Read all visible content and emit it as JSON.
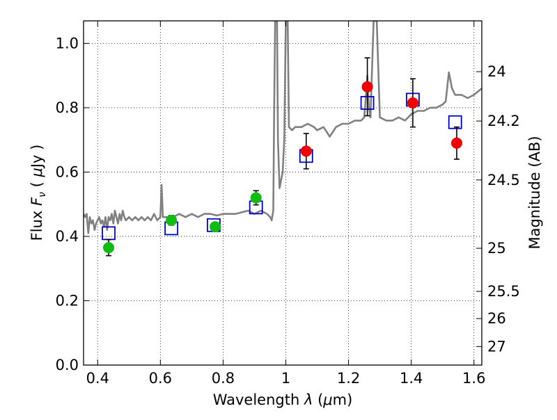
{
  "chart_data": {
    "type": "scatter",
    "xlabel": "Wavelength  λ (μm)",
    "ylabel": "Flux  F_ν  ( μJy )",
    "ylabel_parts": {
      "pre": "Flux  ",
      "var": "F",
      "sub": "ν",
      "post": "  ( ",
      "mu": "μ",
      "unit": "Jy )"
    },
    "xlabel_parts": {
      "pre": "Wavelength  ",
      "var": "λ",
      "post": " (",
      "mu": "μ",
      "unit": "m)"
    },
    "y2label": "Magnitude (AB)",
    "xlim": [
      0.355,
      1.625
    ],
    "ylim": [
      0.0,
      1.07
    ],
    "grid": true,
    "x_ticks": [
      {
        "v": 0.4,
        "label": "0.4"
      },
      {
        "v": 0.6,
        "label": "0.6"
      },
      {
        "v": 0.8,
        "label": "0.8"
      },
      {
        "v": 1.0,
        "label": "1"
      },
      {
        "v": 1.2,
        "label": "1.2"
      },
      {
        "v": 1.4,
        "label": "1.4"
      },
      {
        "v": 1.6,
        "label": "1.6"
      }
    ],
    "y_ticks": [
      {
        "v": 0.0,
        "label": "0.0"
      },
      {
        "v": 0.2,
        "label": "0.2"
      },
      {
        "v": 0.4,
        "label": "0.4"
      },
      {
        "v": 0.6,
        "label": "0.6"
      },
      {
        "v": 0.8,
        "label": "0.8"
      },
      {
        "v": 1.0,
        "label": "1.0"
      }
    ],
    "y2_ticks": [
      {
        "mag": 24,
        "label": "24"
      },
      {
        "mag": 24.2,
        "label": "24.2"
      },
      {
        "mag": 24.5,
        "label": "24.5"
      },
      {
        "mag": 25,
        "label": "25"
      },
      {
        "mag": 25.5,
        "label": "25.5"
      },
      {
        "mag": 26,
        "label": "26"
      },
      {
        "mag": 27,
        "label": "27"
      }
    ],
    "series": [
      {
        "kind": "line",
        "color": "#808080",
        "points": [
          [
            0.355,
            0.47
          ],
          [
            0.36,
            0.46
          ],
          [
            0.365,
            0.47
          ],
          [
            0.37,
            0.41
          ],
          [
            0.375,
            0.46
          ],
          [
            0.38,
            0.44
          ],
          [
            0.385,
            0.45
          ],
          [
            0.39,
            0.42
          ],
          [
            0.395,
            0.44
          ],
          [
            0.4,
            0.45
          ],
          [
            0.405,
            0.46
          ],
          [
            0.41,
            0.44
          ],
          [
            0.415,
            0.45
          ],
          [
            0.42,
            0.43
          ],
          [
            0.425,
            0.46
          ],
          [
            0.43,
            0.42
          ],
          [
            0.435,
            0.46
          ],
          [
            0.44,
            0.45
          ],
          [
            0.445,
            0.47
          ],
          [
            0.45,
            0.44
          ],
          [
            0.455,
            0.48
          ],
          [
            0.46,
            0.46
          ],
          [
            0.465,
            0.44
          ],
          [
            0.47,
            0.47
          ],
          [
            0.475,
            0.45
          ],
          [
            0.48,
            0.48
          ],
          [
            0.485,
            0.46
          ],
          [
            0.49,
            0.45
          ],
          [
            0.5,
            0.46
          ],
          [
            0.51,
            0.45
          ],
          [
            0.52,
            0.46
          ],
          [
            0.53,
            0.45
          ],
          [
            0.54,
            0.46
          ],
          [
            0.55,
            0.45
          ],
          [
            0.56,
            0.46
          ],
          [
            0.57,
            0.45
          ],
          [
            0.58,
            0.47
          ],
          [
            0.59,
            0.45
          ],
          [
            0.6,
            0.46
          ],
          [
            0.604,
            0.56
          ],
          [
            0.608,
            0.46
          ],
          [
            0.62,
            0.46
          ],
          [
            0.64,
            0.46
          ],
          [
            0.66,
            0.47
          ],
          [
            0.68,
            0.46
          ],
          [
            0.7,
            0.47
          ],
          [
            0.72,
            0.46
          ],
          [
            0.74,
            0.47
          ],
          [
            0.76,
            0.47
          ],
          [
            0.78,
            0.465
          ],
          [
            0.8,
            0.47
          ],
          [
            0.82,
            0.47
          ],
          [
            0.84,
            0.47
          ],
          [
            0.86,
            0.475
          ],
          [
            0.88,
            0.48
          ],
          [
            0.9,
            0.47
          ],
          [
            0.92,
            0.48
          ],
          [
            0.94,
            0.47
          ],
          [
            0.95,
            0.46
          ],
          [
            0.955,
            0.45
          ],
          [
            0.96,
            0.48
          ],
          [
            0.963,
            0.8
          ],
          [
            0.966,
            1.07
          ],
          [
            0.972,
            1.07
          ],
          [
            0.975,
            0.7
          ],
          [
            0.98,
            0.55
          ],
          [
            0.99,
            0.6
          ],
          [
            0.995,
            0.7
          ],
          [
            1.0,
            1.07
          ],
          [
            1.006,
            1.07
          ],
          [
            1.01,
            0.74
          ],
          [
            1.02,
            0.73
          ],
          [
            1.03,
            0.74
          ],
          [
            1.05,
            0.74
          ],
          [
            1.07,
            0.75
          ],
          [
            1.09,
            0.74
          ],
          [
            1.1,
            0.73
          ],
          [
            1.12,
            0.74
          ],
          [
            1.14,
            0.71
          ],
          [
            1.16,
            0.74
          ],
          [
            1.18,
            0.75
          ],
          [
            1.2,
            0.75
          ],
          [
            1.22,
            0.76
          ],
          [
            1.24,
            0.76
          ],
          [
            1.25,
            0.77
          ],
          [
            1.255,
            0.83
          ],
          [
            1.26,
            0.9
          ],
          [
            1.265,
            0.8
          ],
          [
            1.27,
            0.77
          ],
          [
            1.28,
            1.07
          ],
          [
            1.29,
            1.07
          ],
          [
            1.3,
            0.77
          ],
          [
            1.32,
            0.76
          ],
          [
            1.34,
            0.76
          ],
          [
            1.36,
            0.77
          ],
          [
            1.38,
            0.76
          ],
          [
            1.4,
            0.78
          ],
          [
            1.42,
            0.79
          ],
          [
            1.44,
            0.79
          ],
          [
            1.46,
            0.8
          ],
          [
            1.48,
            0.8
          ],
          [
            1.5,
            0.81
          ],
          [
            1.51,
            0.82
          ],
          [
            1.52,
            0.91
          ],
          [
            1.53,
            0.86
          ],
          [
            1.54,
            0.84
          ],
          [
            1.56,
            0.84
          ],
          [
            1.58,
            0.83
          ],
          [
            1.6,
            0.84
          ],
          [
            1.625,
            0.86
          ]
        ]
      },
      {
        "kind": "model_squares",
        "color": "#0000cc",
        "points": [
          [
            0.435,
            0.41
          ],
          [
            0.635,
            0.425
          ],
          [
            0.77,
            0.435
          ],
          [
            0.905,
            0.49
          ],
          [
            1.065,
            0.65
          ],
          [
            1.26,
            0.815
          ],
          [
            1.405,
            0.825
          ],
          [
            1.54,
            0.755
          ]
        ]
      },
      {
        "kind": "points_errorbars",
        "color": "#11bb11",
        "points": [
          {
            "x": 0.435,
            "y": 0.365,
            "err": 0.025
          },
          {
            "x": 0.635,
            "y": 0.45,
            "err": 0.015
          },
          {
            "x": 0.775,
            "y": 0.43,
            "err": 0.013
          },
          {
            "x": 0.905,
            "y": 0.52,
            "err": 0.022
          }
        ]
      },
      {
        "kind": "points_errorbars",
        "color": "#ee0000",
        "points": [
          {
            "x": 1.065,
            "y": 0.665,
            "err": 0.055
          },
          {
            "x": 1.26,
            "y": 0.865,
            "err": 0.09
          },
          {
            "x": 1.405,
            "y": 0.815,
            "err": 0.075
          },
          {
            "x": 1.545,
            "y": 0.69,
            "err": 0.05
          }
        ]
      }
    ]
  }
}
